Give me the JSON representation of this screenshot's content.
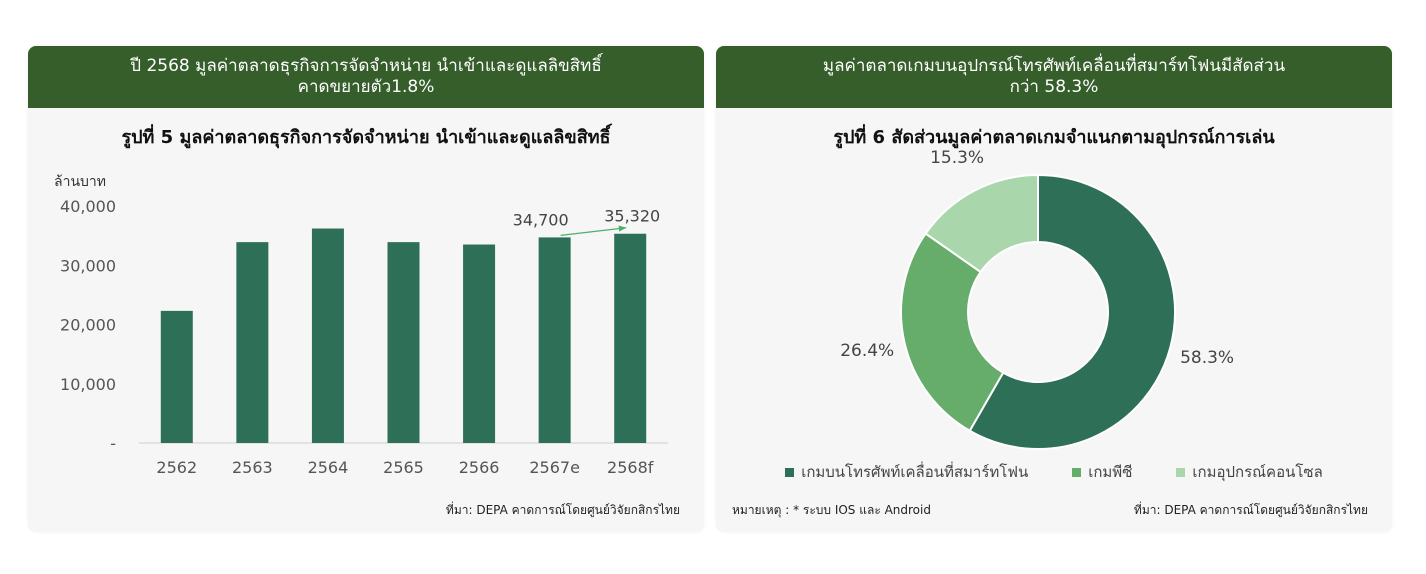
{
  "left_panel": {
    "header_line1": "ปี 2568 มูลค่าตลาดธุรกิจการจัดจำหน่าย นำเข้าและดูแลลิขสิทธิ์",
    "header_line2": "คาดขยายตัว1.8%",
    "source": "ที่มา: DEPA  คาดการณ์โดยศูนย์วิจัยกสิกรไทย"
  },
  "right_panel": {
    "header_line1": "มูลค่าตลาดเกมบนอุปกรณ์โทรศัพท์เคลื่อนที่สมาร์ทโฟนมีสัดส่วน",
    "header_line2": "กว่า 58.3%",
    "note": "หมายเหตุ : * ระบบ IOS และ Android",
    "source": "ที่มา: DEPA  คาดการณ์โดยศูนย์วิจัยกสิกรไทย"
  },
  "colors": {
    "header_bg": "#355e2b",
    "bar": "#2e6f58",
    "pie_dark": "#2e6f58",
    "pie_mid": "#66ad6b",
    "pie_light": "#a9d6ab",
    "arrow": "#4caf6a"
  },
  "chart_data": [
    {
      "type": "bar",
      "title": "รูปที่ 5 มูลค่าตลาดธุรกิจการจัดจำหน่าย นำเข้าและดูแลลิขสิทธิ์",
      "ylabel": "ล้านบาท",
      "categories": [
        "2562",
        "2563",
        "2564",
        "2565",
        "2566",
        "2567e",
        "2568f"
      ],
      "values": [
        22300,
        33900,
        36200,
        33900,
        33500,
        34700,
        35320
      ],
      "value_labels": [
        "",
        "",
        "",
        "",
        "",
        "34,700",
        "35,320"
      ],
      "ylim": [
        0,
        40000
      ],
      "yticks": [
        {
          "value": 0,
          "label": "-"
        },
        {
          "value": 10000,
          "label": "10,000"
        },
        {
          "value": 20000,
          "label": "20,000"
        },
        {
          "value": 30000,
          "label": "30,000"
        },
        {
          "value": 40000,
          "label": "40,000"
        }
      ],
      "grid": false,
      "annotation": "arrow from 2567e to 2568f"
    },
    {
      "type": "pie",
      "title": "รูปที่ 6 สัดส่วนมูลค่าตลาดเกมจำแนกตามอุปกรณ์การเล่น",
      "donut": true,
      "slices": [
        {
          "label": "เกมบนโทรศัพท์เคลื่อนที่สมาร์ทโฟน",
          "value": 58.3,
          "value_label": "58.3%"
        },
        {
          "label": "เกมพีซี",
          "value": 26.4,
          "value_label": "26.4%"
        },
        {
          "label": "เกมอุปกรณ์คอนโซล",
          "value": 15.3,
          "value_label": "15.3%"
        }
      ],
      "legend": "bottom"
    }
  ]
}
